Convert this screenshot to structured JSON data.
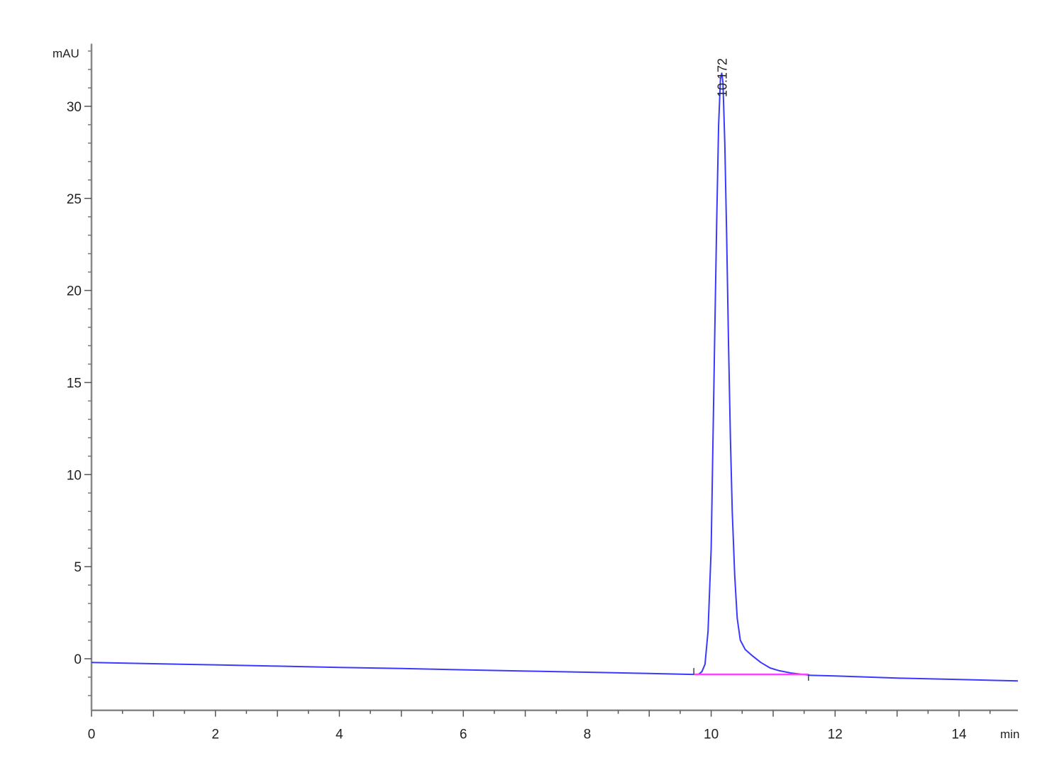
{
  "chart_data": {
    "type": "line",
    "title": "",
    "xlabel": "min",
    "ylabel": "mAU",
    "xlim": [
      0,
      14.95
    ],
    "ylim": [
      -2.8,
      33.4
    ],
    "x_ticks": [
      0,
      2,
      4,
      6,
      8,
      10,
      12,
      14
    ],
    "x_minor_step": 0.5,
    "y_ticks": [
      0,
      5,
      10,
      15,
      20,
      25,
      30
    ],
    "y_minor_step": 1,
    "grid": false,
    "colors": {
      "trace": "#3a3aff",
      "integration_baseline": "#ff40ff",
      "axis": "#888888"
    },
    "series": [
      {
        "points": [
          [
            0,
            -0.2
          ],
          [
            1,
            -0.27
          ],
          [
            2,
            -0.33
          ],
          [
            3,
            -0.4
          ],
          [
            4,
            -0.47
          ],
          [
            5,
            -0.53
          ],
          [
            6,
            -0.6
          ],
          [
            7,
            -0.67
          ],
          [
            8,
            -0.73
          ],
          [
            9,
            -0.8
          ],
          [
            9.7,
            -0.85
          ],
          [
            9.8,
            -0.84
          ],
          [
            9.85,
            -0.7
          ],
          [
            9.9,
            -0.3
          ],
          [
            9.95,
            1.5
          ],
          [
            10.0,
            6
          ],
          [
            10.03,
            12
          ],
          [
            10.06,
            18
          ],
          [
            10.09,
            24
          ],
          [
            10.12,
            29
          ],
          [
            10.15,
            31.5
          ],
          [
            10.17,
            31.8
          ],
          [
            10.19,
            31.3
          ],
          [
            10.22,
            28
          ],
          [
            10.25,
            23
          ],
          [
            10.28,
            17
          ],
          [
            10.31,
            12
          ],
          [
            10.34,
            8
          ],
          [
            10.38,
            4.5
          ],
          [
            10.42,
            2.2
          ],
          [
            10.47,
            1.0
          ],
          [
            10.55,
            0.5
          ],
          [
            10.65,
            0.2
          ],
          [
            10.8,
            -0.2
          ],
          [
            10.95,
            -0.5
          ],
          [
            11.1,
            -0.65
          ],
          [
            11.3,
            -0.78
          ],
          [
            11.6,
            -0.9
          ],
          [
            12,
            -0.93
          ],
          [
            13,
            -1.05
          ],
          [
            14,
            -1.13
          ],
          [
            14.95,
            -1.2
          ]
        ]
      }
    ],
    "peaks": [
      {
        "label": "10.172",
        "rt": 10.172,
        "height": 31.8,
        "integration": [
          [
            9.72,
            -0.85
          ],
          [
            11.57,
            -0.85
          ]
        ]
      }
    ]
  }
}
